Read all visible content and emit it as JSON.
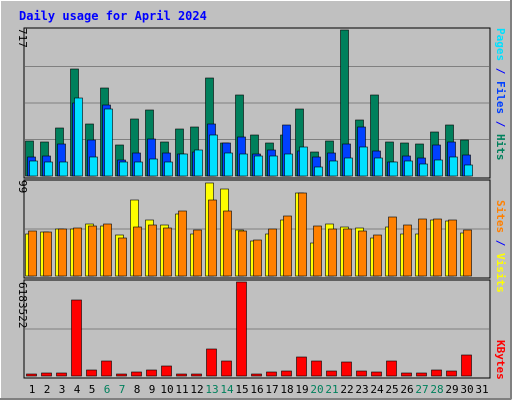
{
  "chart_data": [
    {
      "type": "bar",
      "title": "Daily usage for April 2024",
      "y_max_label": "717",
      "ylim": [
        0,
        717
      ],
      "legend": [
        {
          "label": "Hits",
          "color": "#00805c"
        },
        {
          "label": "/",
          "color": "#0000ff"
        },
        {
          "label": "Files",
          "color": "#0040ff"
        },
        {
          "label": "/",
          "color": "#0000ff"
        },
        {
          "label": "Pages",
          "color": "#00e0ff"
        }
      ],
      "categories": [
        "1",
        "2",
        "3",
        "4",
        "5",
        "6",
        "7",
        "8",
        "9",
        "10",
        "11",
        "12",
        "13",
        "14",
        "15",
        "16",
        "17",
        "18",
        "19",
        "20",
        "21",
        "22",
        "23",
        "24",
        "25",
        "26",
        "27",
        "28",
        "29",
        "30",
        "31"
      ],
      "weekend_days": [
        "6",
        "7",
        "13",
        "14",
        "20",
        "21",
        "27",
        "28"
      ],
      "series": [
        {
          "name": "Hits",
          "color": "#00805c",
          "values": [
            170,
            165,
            235,
            525,
            255,
            430,
            150,
            280,
            325,
            165,
            230,
            240,
            480,
            160,
            400,
            200,
            160,
            200,
            330,
            120,
            170,
            717,
            275,
            400,
            165,
            160,
            155,
            215,
            250,
            175,
            0
          ]
        },
        {
          "name": "Files",
          "color": "#0040ff",
          "values": [
            95,
            100,
            155,
            360,
            175,
            350,
            80,
            115,
            180,
            115,
            110,
            120,
            255,
            160,
            190,
            110,
            130,
            250,
            125,
            95,
            115,
            155,
            240,
            125,
            70,
            100,
            90,
            150,
            165,
            105,
            0
          ]
        },
        {
          "name": "Pages",
          "color": "#00e0ff",
          "values": [
            75,
            70,
            70,
            385,
            95,
            330,
            70,
            70,
            85,
            70,
            110,
            130,
            200,
            115,
            110,
            100,
            100,
            110,
            140,
            45,
            75,
            90,
            140,
            90,
            70,
            75,
            60,
            80,
            95,
            55,
            0
          ]
        }
      ]
    },
    {
      "type": "bar",
      "y_max_label": "99",
      "ylim": [
        0,
        99
      ],
      "legend": [
        {
          "label": "Visits",
          "color": "#ffff00"
        },
        {
          "label": "/",
          "color": "#0000ff"
        },
        {
          "label": "Sites",
          "color": "#ff8000"
        }
      ],
      "categories": [
        "1",
        "2",
        "3",
        "4",
        "5",
        "6",
        "7",
        "8",
        "9",
        "10",
        "11",
        "12",
        "13",
        "14",
        "15",
        "16",
        "17",
        "18",
        "19",
        "20",
        "21",
        "22",
        "23",
        "24",
        "25",
        "26",
        "27",
        "28",
        "29",
        "30",
        "31"
      ],
      "series": [
        {
          "name": "Visits",
          "color": "#ffff00",
          "values": [
            44,
            46,
            49,
            49,
            55,
            53,
            43,
            80,
            59,
            54,
            65,
            44,
            98,
            92,
            48,
            37,
            44,
            59,
            87,
            35,
            55,
            52,
            51,
            40,
            52,
            44,
            44,
            59,
            58,
            45,
            0
          ]
        },
        {
          "name": "Sites",
          "color": "#ff8000",
          "values": [
            47,
            46,
            49,
            51,
            53,
            55,
            40,
            52,
            54,
            51,
            68,
            48,
            80,
            68,
            47,
            38,
            49,
            63,
            87,
            53,
            49,
            49,
            47,
            43,
            62,
            54,
            60,
            60,
            59,
            48,
            0
          ]
        }
      ]
    },
    {
      "type": "bar",
      "y_max_label": "6183522",
      "ylim": [
        0,
        6183522
      ],
      "legend": [
        {
          "label": "KBytes",
          "color": "#ff0000"
        }
      ],
      "categories": [
        "1",
        "2",
        "3",
        "4",
        "5",
        "6",
        "7",
        "8",
        "9",
        "10",
        "11",
        "12",
        "13",
        "14",
        "15",
        "16",
        "17",
        "18",
        "19",
        "20",
        "21",
        "22",
        "23",
        "24",
        "25",
        "26",
        "27",
        "28",
        "29",
        "30",
        "31"
      ],
      "series": [
        {
          "name": "KBytes",
          "color": "#ff0000",
          "values": [
            120000,
            200000,
            220000,
            4970000,
            380000,
            1000000,
            160000,
            260000,
            410000,
            680000,
            110000,
            160000,
            1800000,
            970000,
            6183522,
            160000,
            240000,
            330000,
            1250000,
            1000000,
            320000,
            930000,
            300000,
            260000,
            1000000,
            220000,
            230000,
            380000,
            300000,
            1350000,
            0
          ]
        }
      ]
    }
  ]
}
